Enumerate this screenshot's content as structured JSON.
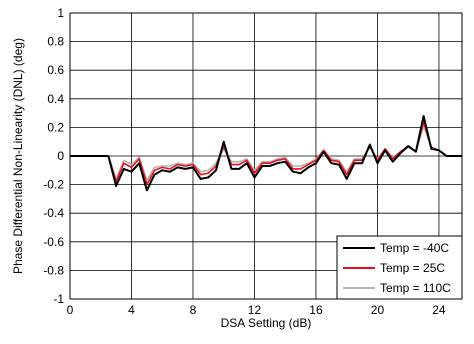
{
  "chart_data": {
    "type": "line",
    "xlabel": "DSA Setting (dB)",
    "ylabel": "Phase Differential Non-Linearity (DNL) (deg)",
    "xlim": [
      0,
      25.5
    ],
    "ylim": [
      -1,
      1
    ],
    "xticks": [
      0,
      4,
      8,
      12,
      16,
      20,
      24
    ],
    "yticks": [
      -1,
      -0.8,
      -0.6,
      -0.4,
      -0.2,
      0,
      0.2,
      0.4,
      0.6,
      0.8,
      1
    ],
    "grid": true,
    "legend_position": "bottom-right",
    "colors": {
      "m40": "#000000",
      "p25": "#e8101a",
      "p110": "#b4b4b4"
    },
    "x": [
      0,
      0.5,
      1,
      1.5,
      2,
      2.5,
      3,
      3.5,
      4,
      4.5,
      5,
      5.5,
      6,
      6.5,
      7,
      7.5,
      8,
      8.5,
      9,
      9.5,
      10,
      10.5,
      11,
      11.5,
      12,
      12.5,
      13,
      13.5,
      14,
      14.5,
      15,
      15.5,
      16,
      16.5,
      17,
      17.5,
      18,
      18.5,
      19,
      19.5,
      20,
      20.5,
      21,
      21.5,
      22,
      22.5,
      23,
      23.5,
      24,
      24.5,
      25,
      25.5
    ],
    "series": [
      {
        "name": "Temp = -40C",
        "key": "m40",
        "values": [
          0,
          0,
          0,
          0,
          0,
          0,
          -0.21,
          -0.09,
          -0.11,
          -0.05,
          -0.24,
          -0.13,
          -0.1,
          -0.11,
          -0.08,
          -0.09,
          -0.08,
          -0.16,
          -0.15,
          -0.1,
          0.1,
          -0.09,
          -0.09,
          -0.05,
          -0.15,
          -0.07,
          -0.07,
          -0.05,
          -0.04,
          -0.11,
          -0.12,
          -0.08,
          -0.05,
          0.03,
          -0.05,
          -0.06,
          -0.16,
          -0.05,
          -0.05,
          0.08,
          -0.05,
          0.04,
          -0.04,
          0.02,
          0.07,
          0.03,
          0.28,
          0.05,
          0.04,
          0,
          0,
          0
        ]
      },
      {
        "name": "Temp = 25C",
        "key": "p25",
        "values": [
          0,
          0,
          0,
          0,
          0,
          0,
          -0.18,
          -0.05,
          -0.08,
          -0.02,
          -0.2,
          -0.1,
          -0.08,
          -0.09,
          -0.06,
          -0.07,
          -0.06,
          -0.13,
          -0.12,
          -0.07,
          0.07,
          -0.06,
          -0.06,
          -0.03,
          -0.12,
          -0.05,
          -0.05,
          -0.03,
          -0.02,
          -0.09,
          -0.09,
          -0.06,
          -0.03,
          0.04,
          -0.03,
          -0.04,
          -0.13,
          -0.03,
          -0.03,
          0.07,
          -0.03,
          0.05,
          -0.02,
          0.03,
          0.07,
          0.03,
          0.24,
          0.06,
          0.04,
          0,
          0,
          0
        ]
      },
      {
        "name": "Temp = 110C",
        "key": "p110",
        "values": [
          0,
          0,
          0,
          0,
          0,
          0,
          -0.16,
          -0.03,
          -0.06,
          -0.01,
          -0.17,
          -0.08,
          -0.07,
          -0.07,
          -0.05,
          -0.06,
          -0.05,
          -0.11,
          -0.1,
          -0.05,
          0.05,
          -0.04,
          -0.04,
          -0.02,
          -0.1,
          -0.04,
          -0.04,
          -0.02,
          -0.01,
          -0.07,
          -0.07,
          -0.05,
          -0.02,
          0.04,
          -0.02,
          -0.03,
          -0.11,
          -0.02,
          -0.02,
          0.06,
          -0.02,
          0.05,
          -0.01,
          0.03,
          0.06,
          0.03,
          0.21,
          0.06,
          0.04,
          0,
          0,
          0
        ]
      }
    ]
  }
}
